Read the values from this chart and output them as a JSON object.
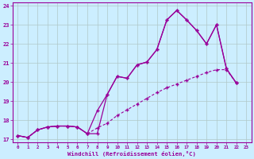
{
  "xlabel": "Windchill (Refroidissement éolien,°C)",
  "background_color": "#cceeff",
  "line_color": "#990099",
  "grid_color": "#b0c8c8",
  "xlim": [
    -0.5,
    23.5
  ],
  "ylim": [
    16.85,
    24.15
  ],
  "yticks": [
    17,
    18,
    19,
    20,
    21,
    22,
    23,
    24
  ],
  "xticks": [
    0,
    1,
    2,
    3,
    4,
    5,
    6,
    7,
    8,
    9,
    10,
    11,
    12,
    13,
    14,
    15,
    16,
    17,
    18,
    19,
    20,
    21,
    22,
    23
  ],
  "line1_x": [
    0,
    1,
    2,
    3,
    4,
    5,
    6,
    7,
    8,
    9,
    10,
    11,
    12,
    13,
    14,
    15,
    16,
    17,
    18,
    19,
    20,
    21,
    22
  ],
  "line1_y": [
    17.2,
    17.1,
    17.5,
    17.65,
    17.7,
    17.7,
    17.65,
    17.3,
    17.3,
    19.35,
    20.3,
    20.2,
    20.9,
    21.05,
    21.7,
    23.25,
    23.75,
    23.25,
    22.7,
    22.0,
    23.0,
    20.7,
    19.95
  ],
  "line2_x": [
    0,
    1,
    2,
    3,
    4,
    5,
    6,
    7,
    8,
    9,
    10,
    11,
    12,
    13,
    14,
    15,
    16,
    17,
    18,
    19,
    20,
    21,
    22
  ],
  "line2_y": [
    17.2,
    17.1,
    17.5,
    17.65,
    17.7,
    17.7,
    17.65,
    17.3,
    18.5,
    19.35,
    20.3,
    20.2,
    20.9,
    21.05,
    21.7,
    23.25,
    23.75,
    23.25,
    22.7,
    22.0,
    23.0,
    20.7,
    19.95
  ],
  "line3_x": [
    0,
    1,
    2,
    3,
    4,
    5,
    6,
    7,
    8,
    9,
    10,
    11,
    12,
    13,
    14,
    15,
    16,
    17,
    18,
    19,
    20,
    21,
    22
  ],
  "line3_y": [
    17.2,
    17.1,
    17.5,
    17.65,
    17.7,
    17.7,
    17.65,
    17.3,
    17.6,
    17.85,
    18.25,
    18.55,
    18.85,
    19.15,
    19.45,
    19.7,
    19.9,
    20.1,
    20.3,
    20.5,
    20.65,
    20.65,
    19.95
  ]
}
